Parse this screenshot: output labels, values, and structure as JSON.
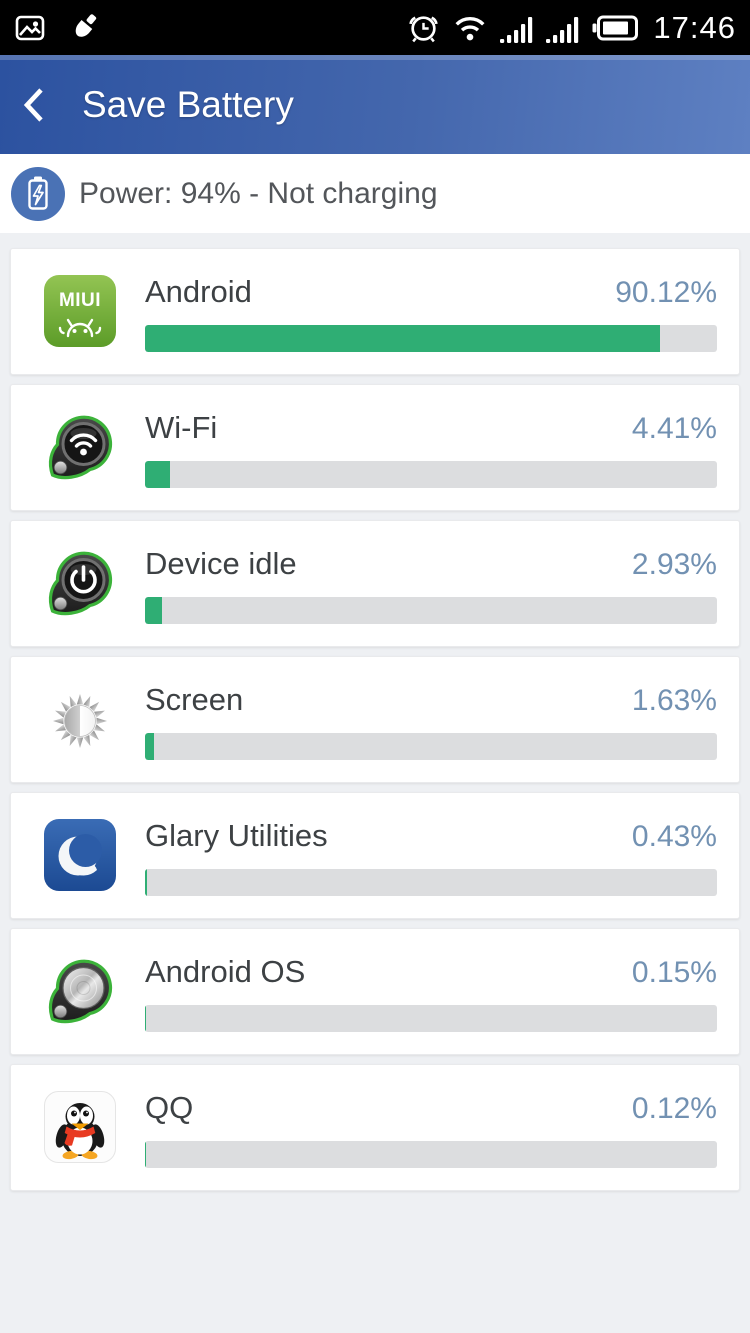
{
  "status_bar": {
    "time": "17:46",
    "left_icons": [
      "gallery-icon",
      "brush-icon"
    ],
    "right_icons": [
      "alarm-icon",
      "wifi-icon",
      "signal-icon",
      "signal-icon",
      "battery-icon"
    ]
  },
  "header": {
    "title": "Save Battery",
    "back_icon": "chevron-left-icon"
  },
  "power_status": {
    "label": "Power: 94% - Not charging",
    "icon": "power-battery-icon"
  },
  "apps": [
    {
      "name": "Android",
      "percent": 90.12,
      "percent_label": "90.12%",
      "icon": "miui-icon"
    },
    {
      "name": "Wi-Fi",
      "percent": 4.41,
      "percent_label": "4.41%",
      "icon": "wifi-pin-icon"
    },
    {
      "name": "Device idle",
      "percent": 2.93,
      "percent_label": "2.93%",
      "icon": "power-pin-icon"
    },
    {
      "name": "Screen",
      "percent": 1.63,
      "percent_label": "1.63%",
      "icon": "screen-brightness-icon"
    },
    {
      "name": "Glary Utilities",
      "percent": 0.43,
      "percent_label": "0.43%",
      "icon": "glary-utilities-icon"
    },
    {
      "name": "Android OS",
      "percent": 0.15,
      "percent_label": "0.15%",
      "icon": "android-os-pin-icon"
    },
    {
      "name": "QQ",
      "percent": 0.12,
      "percent_label": "0.12%",
      "icon": "qq-icon"
    }
  ],
  "colors": {
    "accent_green": "#2fae74",
    "percent_text": "#7291b2",
    "header_blue_dark": "#2c52a0",
    "header_blue_light": "#5e80c2",
    "power_badge_blue": "#4a72b5",
    "track_gray": "#dcdddf"
  }
}
